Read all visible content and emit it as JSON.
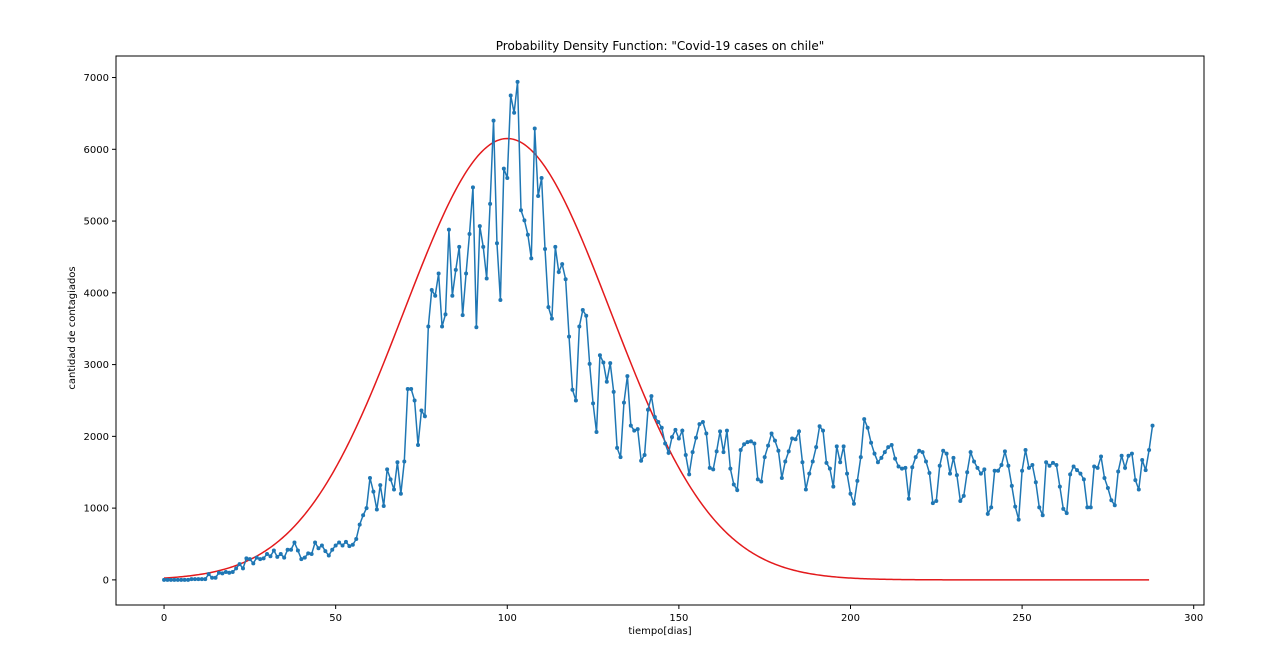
{
  "chart_data": {
    "type": "line",
    "title": "Probability Density Function: \"Covid-19 cases on chile\"",
    "xlabel": "tiempo[dias]",
    "ylabel": "cantidad de contagiados",
    "xlim": [
      -14,
      303
    ],
    "ylim": [
      -350,
      7300
    ],
    "xticks": [
      {
        "value": 0,
        "label": "0"
      },
      {
        "value": 50,
        "label": "50"
      },
      {
        "value": 100,
        "label": "100"
      },
      {
        "value": 150,
        "label": "150"
      },
      {
        "value": 200,
        "label": "200"
      },
      {
        "value": 250,
        "label": "250"
      },
      {
        "value": 300,
        "label": "300"
      }
    ],
    "yticks": [
      {
        "value": 0,
        "label": "0"
      },
      {
        "value": 1000,
        "label": "1000"
      },
      {
        "value": 2000,
        "label": "2000"
      },
      {
        "value": 3000,
        "label": "3000"
      },
      {
        "value": 4000,
        "label": "4000"
      },
      {
        "value": 5000,
        "label": "5000"
      },
      {
        "value": 6000,
        "label": "6000"
      },
      {
        "value": 7000,
        "label": "7000"
      }
    ],
    "grid": false,
    "legend": "none",
    "series": [
      {
        "kind": "line-with-markers",
        "color": "#1f77b4",
        "x_start": 0,
        "x_step": 1,
        "values": [
          0,
          0,
          0,
          0,
          0,
          0,
          0,
          0,
          10,
          10,
          10,
          10,
          10,
          80,
          30,
          30,
          100,
          90,
          110,
          100,
          110,
          160,
          220,
          160,
          300,
          290,
          230,
          310,
          290,
          300,
          360,
          330,
          410,
          320,
          360,
          310,
          420,
          420,
          520,
          410,
          290,
          310,
          370,
          360,
          520,
          440,
          480,
          400,
          340,
          420,
          480,
          520,
          480,
          530,
          470,
          490,
          570,
          770,
          900,
          1000,
          1420,
          1230,
          980,
          1320,
          1030,
          1540,
          1400,
          1260,
          1640,
          1200,
          1650,
          2660,
          2660,
          2500,
          1880,
          2360,
          2280,
          3530,
          4040,
          3960,
          4270,
          3530,
          3700,
          4880,
          3960,
          4320,
          4640,
          3690,
          4270,
          4820,
          5470,
          3520,
          4930,
          4640,
          4200,
          5240,
          6400,
          4690,
          3900,
          5730,
          5600,
          6750,
          6510,
          6940,
          5150,
          5010,
          4810,
          4480,
          6290,
          5350,
          5600,
          4610,
          3800,
          3640,
          4640,
          4290,
          4400,
          4190,
          3390,
          2650,
          2500,
          3530,
          3760,
          3680,
          3010,
          2460,
          2060,
          3130,
          3030,
          2760,
          3020,
          2620,
          1840,
          1710,
          2470,
          2840,
          2150,
          2080,
          2100,
          1660,
          1740,
          2370,
          2560,
          2270,
          2200,
          2120,
          1900,
          1770,
          1990,
          2090,
          1970,
          2080,
          1740,
          1470,
          1780,
          1980,
          2170,
          2200,
          2040,
          1560,
          1540,
          1790,
          2070,
          1780,
          2080,
          1550,
          1330,
          1250,
          1810,
          1890,
          1920,
          1930,
          1900,
          1400,
          1370,
          1710,
          1870,
          2040,
          1940,
          1800,
          1420,
          1650,
          1790,
          1970,
          1960,
          2070,
          1640,
          1260,
          1480,
          1650,
          1850,
          2140,
          2080,
          1630,
          1550,
          1300,
          1860,
          1640,
          1860,
          1480,
          1200,
          1060,
          1380,
          1710,
          2240,
          2120,
          1910,
          1760,
          1640,
          1700,
          1780,
          1850,
          1880,
          1690,
          1580,
          1550,
          1560,
          1130,
          1570,
          1710,
          1800,
          1780,
          1650,
          1490,
          1070,
          1100,
          1590,
          1800,
          1760,
          1480,
          1700,
          1460,
          1100,
          1170,
          1500,
          1780,
          1650,
          1560,
          1480,
          1540,
          920,
          1010,
          1520,
          1520,
          1600,
          1790,
          1590,
          1310,
          1020,
          840,
          1520,
          1810,
          1560,
          1600,
          1360,
          1010,
          900,
          1640,
          1590,
          1630,
          1600,
          1300,
          990,
          930,
          1470,
          1580,
          1530,
          1480,
          1400,
          1010,
          1010,
          1580,
          1560,
          1720,
          1420,
          1280,
          1110,
          1040,
          1510,
          1730,
          1560,
          1730,
          1760,
          1390,
          1260,
          1670,
          1530,
          1810,
          2150
        ]
      },
      {
        "kind": "line",
        "color": "#e31a1c",
        "curve": "gaussian",
        "x_range": [
          0,
          287
        ],
        "peak_x": 100,
        "peak_y": 6150,
        "sigma": 30.2
      }
    ]
  }
}
